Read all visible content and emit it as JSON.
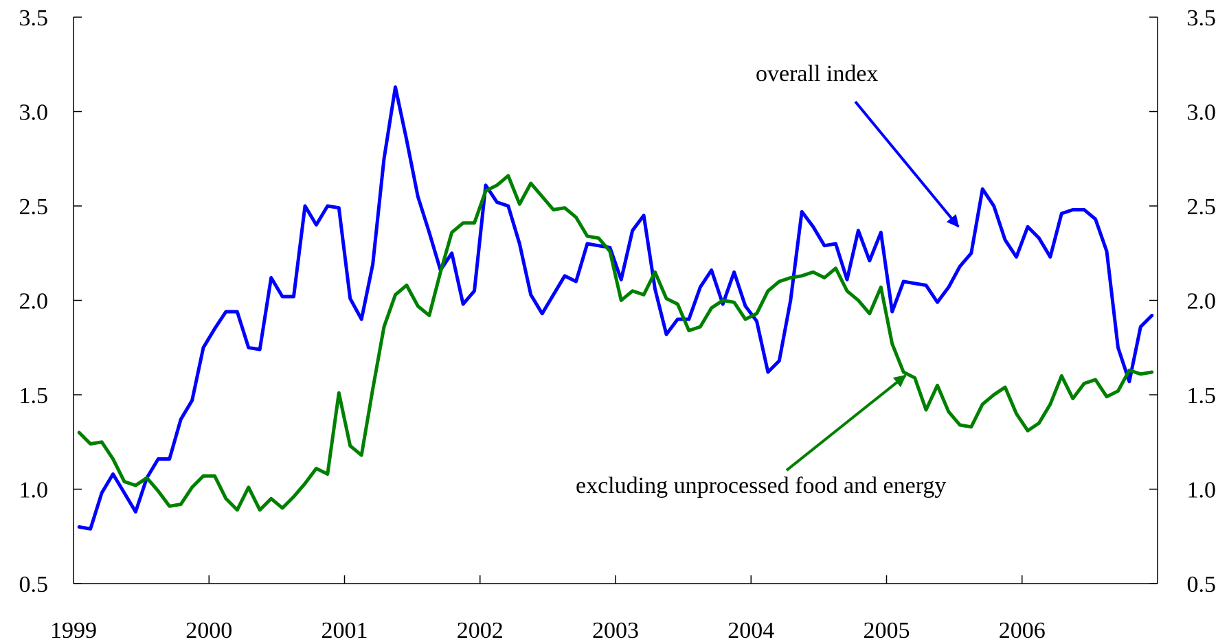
{
  "chart_data": {
    "type": "line",
    "title": "",
    "xlabel": "",
    "ylabel": "",
    "ylim": [
      0.5,
      3.5
    ],
    "y_ticks": [
      "0.5",
      "1.0",
      "1.5",
      "2.0",
      "2.5",
      "3.0",
      "3.5"
    ],
    "y_tick_values": [
      0.5,
      1.0,
      1.5,
      2.0,
      2.5,
      3.0,
      3.5
    ],
    "x_tick_labels": [
      "1999",
      "2000",
      "2001",
      "2002",
      "2003",
      "2004",
      "2005",
      "2006"
    ],
    "x_start": "1999-01",
    "x_end": "2006-12",
    "frequency": "monthly",
    "grid": false,
    "dual_y_axis": true,
    "annotations": [
      {
        "text": "overall index",
        "series": "overall"
      },
      {
        "text": "excluding unprocessed food and energy",
        "series": "core"
      }
    ],
    "series": [
      {
        "key": "overall",
        "color": "#0000ff",
        "values": [
          0.8,
          0.79,
          0.98,
          1.08,
          0.98,
          0.88,
          1.06,
          1.16,
          1.16,
          1.37,
          1.47,
          1.75,
          1.85,
          1.94,
          1.94,
          1.75,
          1.74,
          2.12,
          2.02,
          2.02,
          2.5,
          2.4,
          2.5,
          2.49,
          2.01,
          1.9,
          2.19,
          2.75,
          3.13,
          2.85,
          2.55,
          2.36,
          2.16,
          2.25,
          1.98,
          2.05,
          2.61,
          2.52,
          2.5,
          2.3,
          2.03,
          1.93,
          2.03,
          2.13,
          2.1,
          2.3,
          2.29,
          2.28,
          2.11,
          2.37,
          2.45,
          2.06,
          1.82,
          1.9,
          1.9,
          2.07,
          2.16,
          1.98,
          2.15,
          1.97,
          1.89,
          1.62,
          1.68,
          2.0,
          2.47,
          2.39,
          2.29,
          2.3,
          2.11,
          2.37,
          2.21,
          2.36,
          1.94,
          2.1,
          2.09,
          2.08,
          1.99,
          2.07,
          2.18,
          2.25,
          2.59,
          2.5,
          2.32,
          2.23,
          2.39,
          2.33,
          2.23,
          2.46,
          2.48,
          2.48,
          2.43,
          2.26,
          1.75,
          1.57,
          1.86,
          1.92
        ]
      },
      {
        "key": "core",
        "color": "#008000",
        "values": [
          1.3,
          1.24,
          1.25,
          1.16,
          1.04,
          1.02,
          1.06,
          0.99,
          0.91,
          0.92,
          1.01,
          1.07,
          1.07,
          0.95,
          0.89,
          1.01,
          0.89,
          0.95,
          0.9,
          0.96,
          1.03,
          1.11,
          1.08,
          1.51,
          1.23,
          1.18,
          1.53,
          1.86,
          2.03,
          2.08,
          1.97,
          1.92,
          2.15,
          2.36,
          2.41,
          2.41,
          2.58,
          2.61,
          2.66,
          2.51,
          2.62,
          2.55,
          2.48,
          2.49,
          2.44,
          2.34,
          2.33,
          2.26,
          2.0,
          2.05,
          2.03,
          2.15,
          2.01,
          1.98,
          1.84,
          1.86,
          1.96,
          2.0,
          1.99,
          1.9,
          1.93,
          2.05,
          2.1,
          2.12,
          2.13,
          2.15,
          2.12,
          2.17,
          2.05,
          2.0,
          1.93,
          2.07,
          1.77,
          1.62,
          1.59,
          1.42,
          1.55,
          1.41,
          1.34,
          1.33,
          1.45,
          1.5,
          1.54,
          1.4,
          1.31,
          1.35,
          1.45,
          1.6,
          1.48,
          1.56,
          1.58,
          1.49,
          1.52,
          1.63,
          1.61,
          1.62
        ]
      }
    ]
  }
}
